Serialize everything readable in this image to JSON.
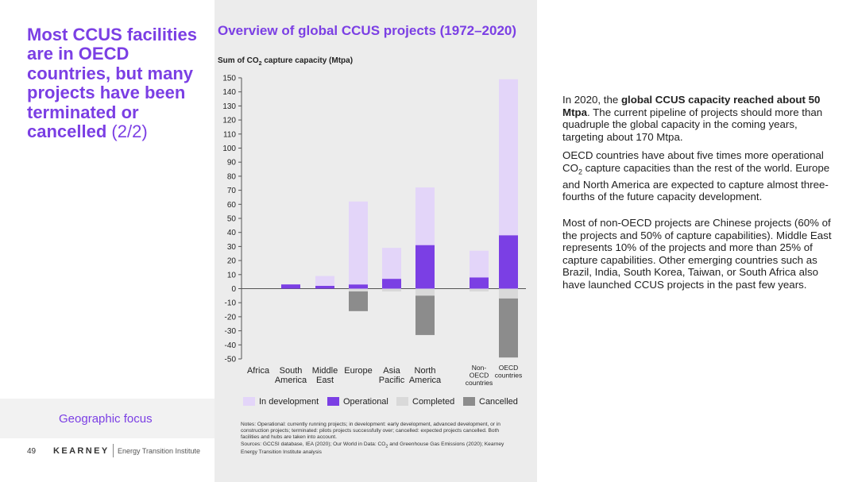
{
  "headline": {
    "main": "Most CCUS facilities are in OECD countries, but many projects have been terminated or cancelled",
    "suffix": "(2/2)"
  },
  "footer": {
    "focus_label": "Geographic focus",
    "page_number": "49",
    "brand": "KEARNEY",
    "brand_sub": "Energy Transition Institute"
  },
  "chart_data": {
    "type": "bar",
    "stacked": true,
    "title": "Overview of global CCUS projects (1972–2020)",
    "ylabel_parts": [
      "Sum of CO",
      "2",
      " capture capacity (Mtpa)"
    ],
    "ylim": [
      -50,
      150
    ],
    "yticks": [
      150,
      140,
      130,
      120,
      110,
      100,
      90,
      80,
      70,
      60,
      50,
      40,
      30,
      20,
      10,
      0,
      -10,
      -20,
      -30,
      -40,
      -50
    ],
    "grid": false,
    "legend_position": "bottom",
    "categories": [
      [
        "Africa"
      ],
      [
        "South",
        "America"
      ],
      [
        "Middle",
        "East"
      ],
      [
        "Europe"
      ],
      [
        "Asia",
        "Pacific"
      ],
      [
        "North",
        "America"
      ],
      [
        "Non-",
        "OECD",
        "countries"
      ],
      [
        "OECD",
        "countries"
      ]
    ],
    "series": [
      {
        "name": "In development",
        "color": "#e3d5f9",
        "values": [
          0,
          0,
          7,
          59,
          22,
          41,
          19,
          111
        ]
      },
      {
        "name": "Operational",
        "color": "#7b3fe4",
        "values": [
          0,
          3,
          2,
          3,
          7,
          31,
          8,
          38
        ]
      },
      {
        "name": "Completed",
        "color": "#d9d9d9",
        "values": [
          0,
          0,
          0,
          -2,
          -2,
          -5,
          -2,
          -7
        ]
      },
      {
        "name": "Cancelled",
        "color": "#8c8c8c",
        "values": [
          0,
          0,
          0,
          -14,
          0,
          -28,
          0,
          -42
        ]
      }
    ]
  },
  "notes": {
    "line1": "Notes: Operational: currently running projects; in development: early development, advanced development, or in construction projects; terminated: pilots projects successfully over; cancelled: expected projects cancelled. Both facilities and hubs are taken into account.",
    "line2_prefix": "Sources: GCCSI database, IEA (2020); Our World in Data: CO",
    "line2_sub": "2",
    "line2_suffix": " and Greenhouse Gas Emissions (2020); Kearney Energy Transition Institute analysis"
  },
  "right_text": {
    "p1_a": "In 2020, the ",
    "p1_b": "global CCUS capacity reached about 50 Mtpa",
    "p1_c": ". The current pipeline of projects should more than quadruple the global capacity in the coming years, targeting about 170 Mtpa.",
    "p2_a": "OECD countries have about five times more operational CO",
    "p2_sub": "2",
    "p2_b": " capture capacities than the rest of the world. Europe and North America are expected to capture almost three-fourths of the future capacity development.",
    "p3": "Most of non-OECD projects are Chinese projects (60% of the projects and 50% of capture capabilities). Middle East represents 10% of the projects and more than 25% of capture capabilities. Other emerging countries such as Brazil, India, South Korea, Taiwan, or South Africa also have launched CCUS projects in the past few years."
  }
}
